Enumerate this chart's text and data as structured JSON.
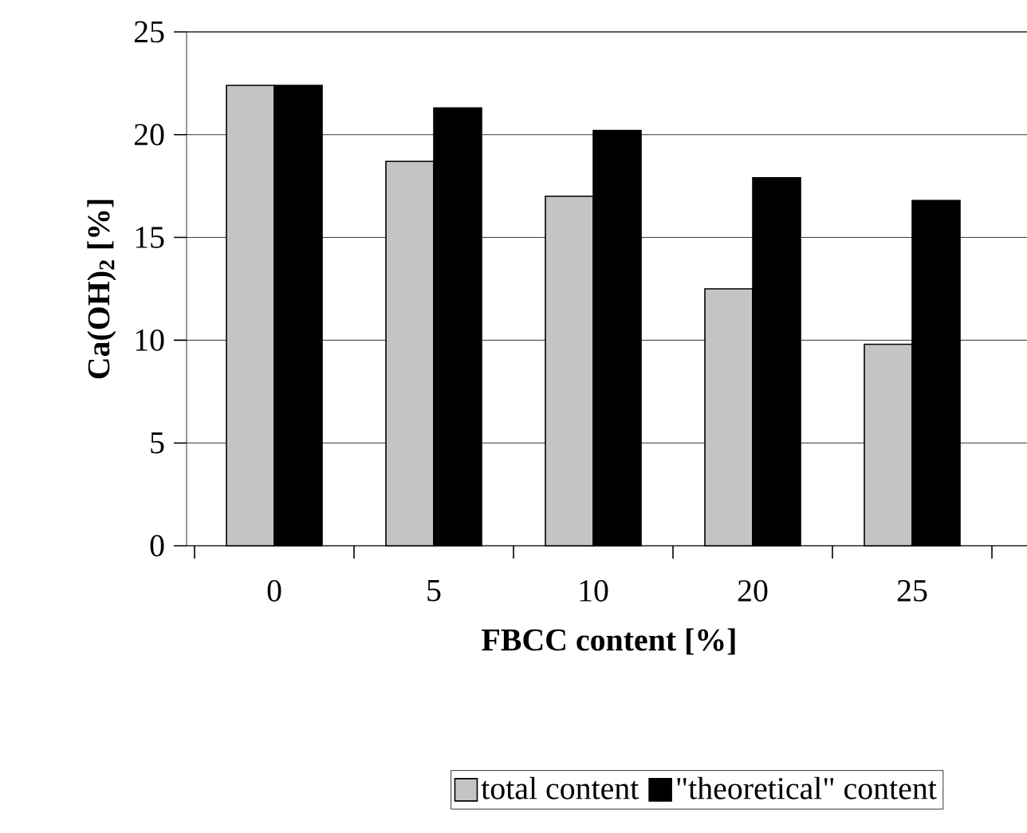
{
  "chart_data": {
    "type": "bar",
    "xlabel": "FBCC content [%]",
    "ylabel": "Ca(OH)$_{2}$ [%]",
    "categories": [
      "0",
      "5",
      "10",
      "20",
      "25"
    ],
    "series": [
      {
        "name": "total content",
        "color": "#c4c4c4",
        "values": [
          22.4,
          18.7,
          17.0,
          12.5,
          9.8
        ]
      },
      {
        "name": "\"theoretical\" content",
        "color": "#000000",
        "values": [
          22.4,
          21.3,
          20.2,
          17.9,
          16.8
        ]
      }
    ],
    "ylim": [
      0,
      25
    ],
    "yticks": [
      0,
      5,
      10,
      15,
      20,
      25
    ],
    "grid": "y",
    "legend": "bottom"
  }
}
